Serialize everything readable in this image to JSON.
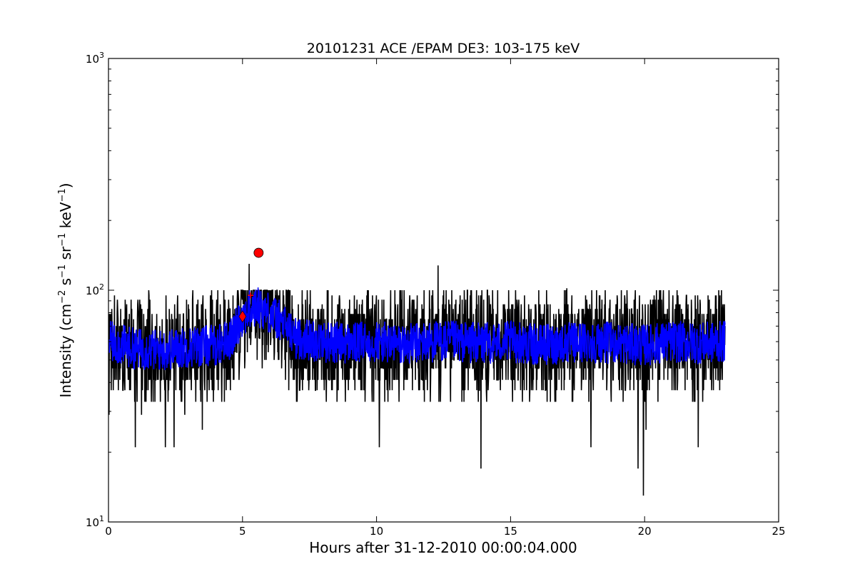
{
  "chart_data": {
    "type": "line",
    "title": "20101231 ACE /EPAM DE3: 103-175 keV",
    "xlabel": "Hours after 31-12-2010 00:00:04.000",
    "ylabel": "Intensity (cm⁻² s⁻¹ sr⁻¹ keV⁻¹)",
    "ylabel_parts": {
      "prefix": "Intensity (cm",
      "cm_exp": "−2",
      "s": " s",
      "s_exp": "−1",
      "sr": " sr",
      "sr_exp": "−1",
      "kev": " keV",
      "kev_exp": "−1",
      "suffix": ")"
    },
    "xlim": [
      0,
      25
    ],
    "ylim": [
      10,
      1000
    ],
    "yscale": "log",
    "grid": false,
    "x_ticks": [
      "0",
      "5",
      "10",
      "15",
      "20",
      "25"
    ],
    "y_ticks": [
      {
        "base": "10",
        "exp": "1"
      },
      {
        "base": "10",
        "exp": "2"
      },
      {
        "base": "10",
        "exp": "3"
      }
    ],
    "series": [
      {
        "color": "#000000",
        "style": "raw",
        "x_range": [
          0,
          23
        ],
        "typical_range": [
          29,
          110
        ],
        "x": [
          0.02,
          1.0,
          1.85,
          2.12,
          2.2,
          2.45,
          3.5,
          4.2,
          5.0,
          5.25,
          5.6,
          6.3,
          7.0,
          8.0,
          9.0,
          9.9,
          10.1,
          11.0,
          12.3,
          13.0,
          13.9,
          14.2,
          15.0,
          16.0,
          17.1,
          17.8,
          18.0,
          19.0,
          19.75,
          19.95,
          20.05,
          21.0,
          22.0,
          23.0
        ],
        "y": [
          29,
          21,
          62,
          21,
          41,
          21,
          25,
          70,
          100,
          130,
          100,
          95,
          55,
          70,
          60,
          62,
          21,
          60,
          128,
          60,
          17,
          95,
          60,
          55,
          102,
          95,
          21,
          60,
          17,
          13,
          25,
          60,
          21,
          70
        ]
      },
      {
        "color": "#0000ff",
        "style": "smoothed",
        "x": [
          0.0,
          1.0,
          2.0,
          3.0,
          4.0,
          4.6,
          5.0,
          5.3,
          5.6,
          6.0,
          6.5,
          7.0,
          8.0,
          9.0,
          10.0,
          11.0,
          12.0,
          13.0,
          14.0,
          15.0,
          16.0,
          17.0,
          18.0,
          19.0,
          20.0,
          21.0,
          22.0,
          23.0
        ],
        "y": [
          60,
          56,
          55,
          57,
          58,
          62,
          78,
          82,
          85,
          80,
          72,
          62,
          60,
          59,
          60,
          58,
          60,
          60,
          59,
          60,
          58,
          59,
          60,
          59,
          58,
          60,
          59,
          60
        ]
      }
    ],
    "markers": [
      {
        "x": 5.6,
        "y": 145,
        "shape": "circle",
        "color": "#ff0000"
      },
      {
        "x": 5.0,
        "y": 77,
        "shape": "diamond",
        "color": "#ff0000"
      },
      {
        "x": 5.3,
        "y": 95,
        "shape": "plus",
        "color": "#ff0000"
      }
    ]
  }
}
